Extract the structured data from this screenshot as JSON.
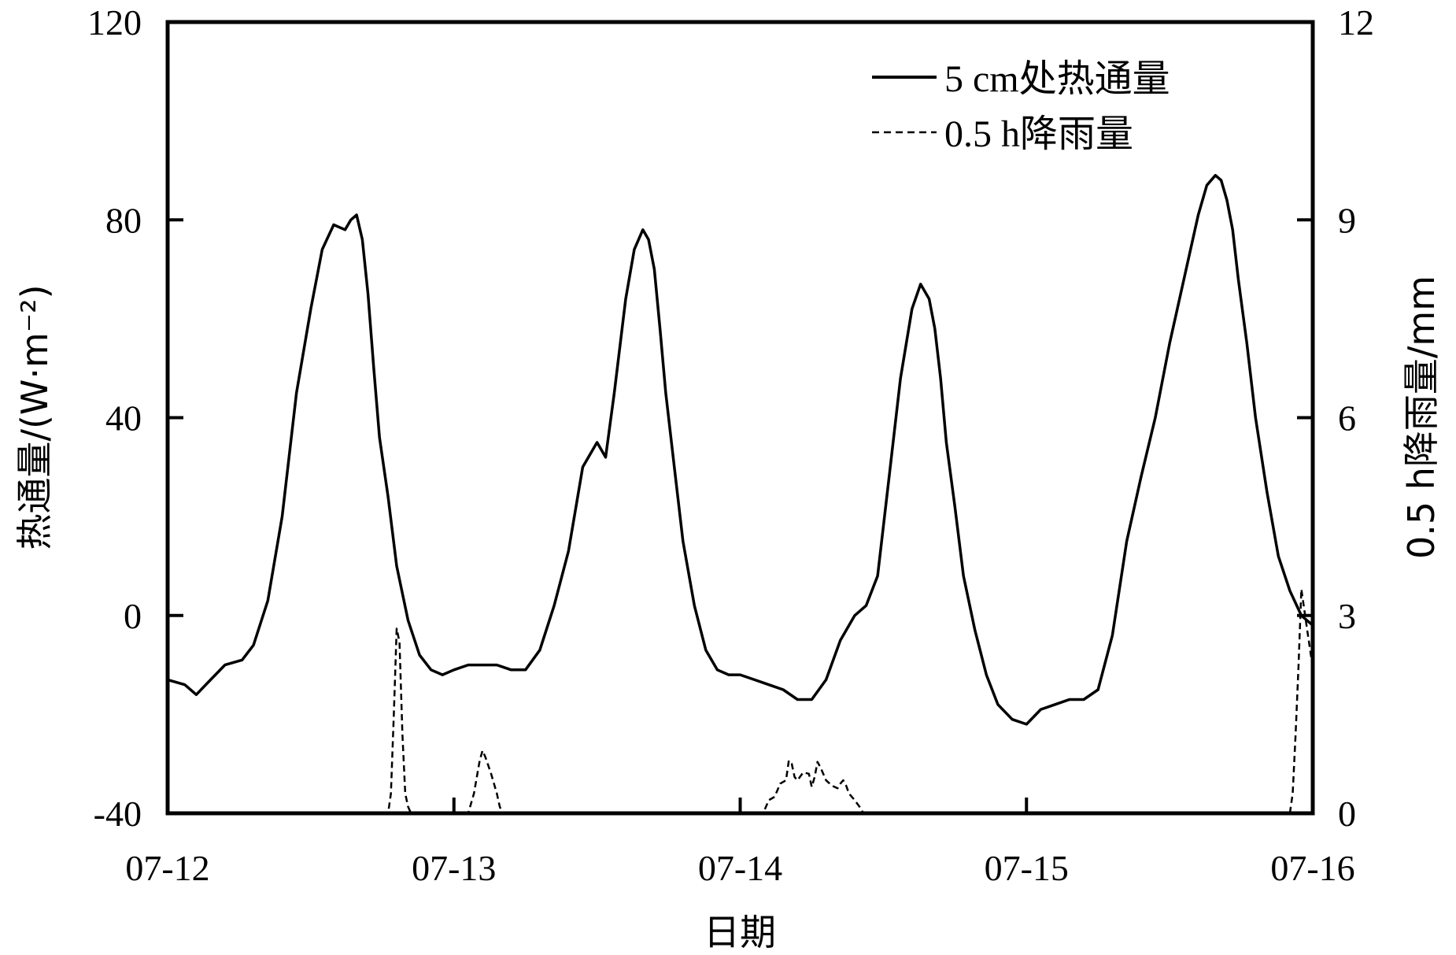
{
  "chart_data": {
    "type": "line",
    "title": "",
    "xlabel": "日期",
    "ylabel": "热通量/(W·m⁻²)",
    "y2label": "0.5 h降雨量/mm",
    "xlim": [
      0,
      4
    ],
    "ylim": [
      -40,
      120
    ],
    "y2lim": [
      0,
      12
    ],
    "xtick_labels": [
      "07-12",
      "07-13",
      "07-14",
      "07-15",
      "07-16"
    ],
    "yticks": [
      -40,
      0,
      40,
      80,
      120
    ],
    "y2ticks": [
      0,
      3,
      6,
      9,
      12
    ],
    "legend_position": "top-right",
    "series": [
      {
        "name": "5 cm处热通量",
        "axis": "left",
        "style": "solid",
        "x": [
          0.0,
          0.06,
          0.1,
          0.15,
          0.2,
          0.26,
          0.3,
          0.35,
          0.4,
          0.45,
          0.5,
          0.54,
          0.58,
          0.62,
          0.64,
          0.66,
          0.68,
          0.7,
          0.72,
          0.74,
          0.77,
          0.8,
          0.84,
          0.88,
          0.92,
          0.96,
          1.0,
          1.05,
          1.1,
          1.15,
          1.2,
          1.25,
          1.3,
          1.35,
          1.4,
          1.45,
          1.5,
          1.53,
          1.56,
          1.6,
          1.63,
          1.66,
          1.68,
          1.7,
          1.72,
          1.74,
          1.77,
          1.8,
          1.84,
          1.88,
          1.92,
          1.96,
          2.0,
          2.05,
          2.1,
          2.15,
          2.2,
          2.25,
          2.3,
          2.35,
          2.4,
          2.44,
          2.48,
          2.52,
          2.56,
          2.6,
          2.63,
          2.66,
          2.68,
          2.7,
          2.72,
          2.75,
          2.78,
          2.82,
          2.86,
          2.9,
          2.95,
          3.0,
          3.05,
          3.1,
          3.15,
          3.2,
          3.25,
          3.3,
          3.35,
          3.4,
          3.45,
          3.5,
          3.55,
          3.6,
          3.63,
          3.66,
          3.68,
          3.7,
          3.72,
          3.74,
          3.77,
          3.8,
          3.84,
          3.88,
          3.92,
          3.96,
          4.0
        ],
        "values": [
          -13,
          -14,
          -16,
          -13,
          -10,
          -9,
          -6,
          3,
          20,
          45,
          62,
          74,
          79,
          78,
          80,
          81,
          76,
          65,
          50,
          36,
          24,
          10,
          -1,
          -8,
          -11,
          -12,
          -11,
          -10,
          -10,
          -10,
          -11,
          -11,
          -7,
          2,
          13,
          30,
          35,
          32,
          45,
          64,
          74,
          78,
          76,
          70,
          58,
          45,
          30,
          15,
          2,
          -7,
          -11,
          -12,
          -12,
          -13,
          -14,
          -15,
          -17,
          -17,
          -13,
          -5,
          0,
          2,
          8,
          28,
          48,
          62,
          67,
          64,
          58,
          48,
          35,
          22,
          8,
          -3,
          -12,
          -18,
          -21,
          -22,
          -19,
          -18,
          -17,
          -17,
          -15,
          -4,
          15,
          28,
          40,
          55,
          68,
          81,
          87,
          89,
          88,
          84,
          78,
          68,
          55,
          40,
          25,
          12,
          5,
          0,
          -2
        ]
      },
      {
        "name": "0.5 h降雨量",
        "axis": "right",
        "style": "dashed",
        "x": [
          0.0,
          0.1,
          0.75,
          0.77,
          0.78,
          0.79,
          0.8,
          0.81,
          0.82,
          0.83,
          0.84,
          0.85,
          0.86,
          1.05,
          1.07,
          1.09,
          1.1,
          1.11,
          1.13,
          1.15,
          1.16,
          1.17,
          1.18,
          1.6,
          1.8,
          2.08,
          2.1,
          2.12,
          2.14,
          2.16,
          2.17,
          2.18,
          2.19,
          2.2,
          2.22,
          2.24,
          2.25,
          2.26,
          2.27,
          2.28,
          2.29,
          2.3,
          2.32,
          2.34,
          2.35,
          2.36,
          2.37,
          2.38,
          2.4,
          2.42,
          2.43,
          3.0,
          3.5,
          3.92,
          3.93,
          3.94,
          3.95,
          3.96,
          3.97,
          3.98,
          3.99,
          4.0
        ],
        "values": [
          0.0,
          0.0,
          0.0,
          0.0,
          0.3,
          1.5,
          2.8,
          2.6,
          1.2,
          0.3,
          0.1,
          0.0,
          0.0,
          0.0,
          0.3,
          0.8,
          0.95,
          0.85,
          0.6,
          0.3,
          0.1,
          0.0,
          0.0,
          0.0,
          0.0,
          0.0,
          0.2,
          0.25,
          0.45,
          0.5,
          0.8,
          0.75,
          0.55,
          0.5,
          0.62,
          0.6,
          0.4,
          0.55,
          0.78,
          0.7,
          0.6,
          0.5,
          0.42,
          0.38,
          0.45,
          0.5,
          0.42,
          0.3,
          0.2,
          0.08,
          0.0,
          0.0,
          0.0,
          0.0,
          0.3,
          1.2,
          2.2,
          3.4,
          3.1,
          2.8,
          2.5,
          2.2
        ]
      }
    ]
  }
}
